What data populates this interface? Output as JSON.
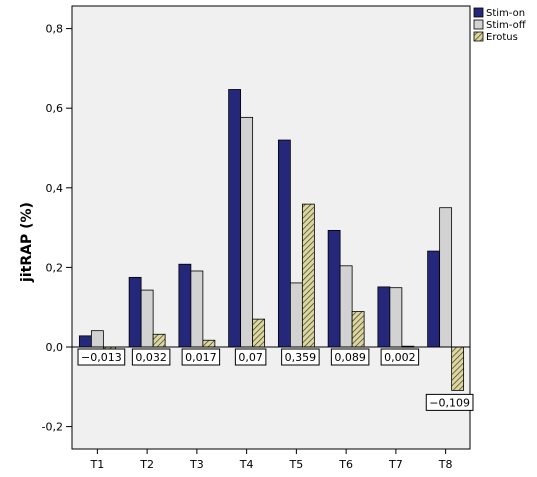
{
  "chart_data": {
    "type": "bar",
    "ylabel": "jitRAP (%)",
    "ylim": [
      -0.25,
      0.85
    ],
    "yticks": [
      -0.2,
      0.0,
      0.2,
      0.4,
      0.6,
      0.8
    ],
    "ytick_labels": [
      "-0,2",
      "0,0",
      "0,2",
      "0,4",
      "0,6",
      "0,8"
    ],
    "categories": [
      "T1",
      "T2",
      "T3",
      "T4",
      "T5",
      "T6",
      "T7",
      "T8"
    ],
    "series": [
      {
        "name": "Stim-on",
        "color": "#25287a",
        "pattern": "solid",
        "values": [
          0.028,
          0.175,
          0.208,
          0.647,
          0.52,
          0.293,
          0.151,
          0.241
        ]
      },
      {
        "name": "Stim-off",
        "color": "#d2d2d2",
        "pattern": "solid",
        "values": [
          0.041,
          0.143,
          0.191,
          0.577,
          0.161,
          0.204,
          0.149,
          0.35
        ]
      },
      {
        "name": "Erotus",
        "color": "#dcd7a0",
        "pattern": "hatched",
        "values": [
          -0.013,
          0.032,
          0.017,
          0.07,
          0.359,
          0.089,
          0.002,
          -0.109
        ],
        "labels": [
          "−0,013",
          "0,032",
          "0,017",
          "0,07",
          "0,359",
          "0,089",
          "0,002",
          "−0,109"
        ]
      }
    ],
    "legend_position": "top-right",
    "grid": false,
    "plot_background": "#f0f0f0"
  }
}
